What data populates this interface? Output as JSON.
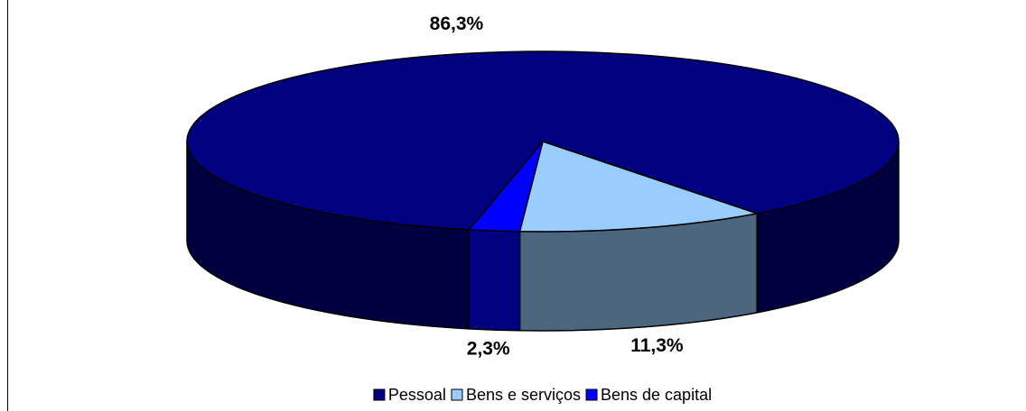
{
  "chart_data": {
    "type": "pie3d",
    "categories": [
      "Pessoal",
      "Bens e serviços",
      "Bens de capital"
    ],
    "values": [
      86.3,
      11.3,
      2.3
    ],
    "value_labels": [
      "86,3%",
      "11,3%",
      "2,3%"
    ],
    "colors": [
      "#000080",
      "#99ccff",
      "#0000ff"
    ],
    "legend": "bottom"
  }
}
